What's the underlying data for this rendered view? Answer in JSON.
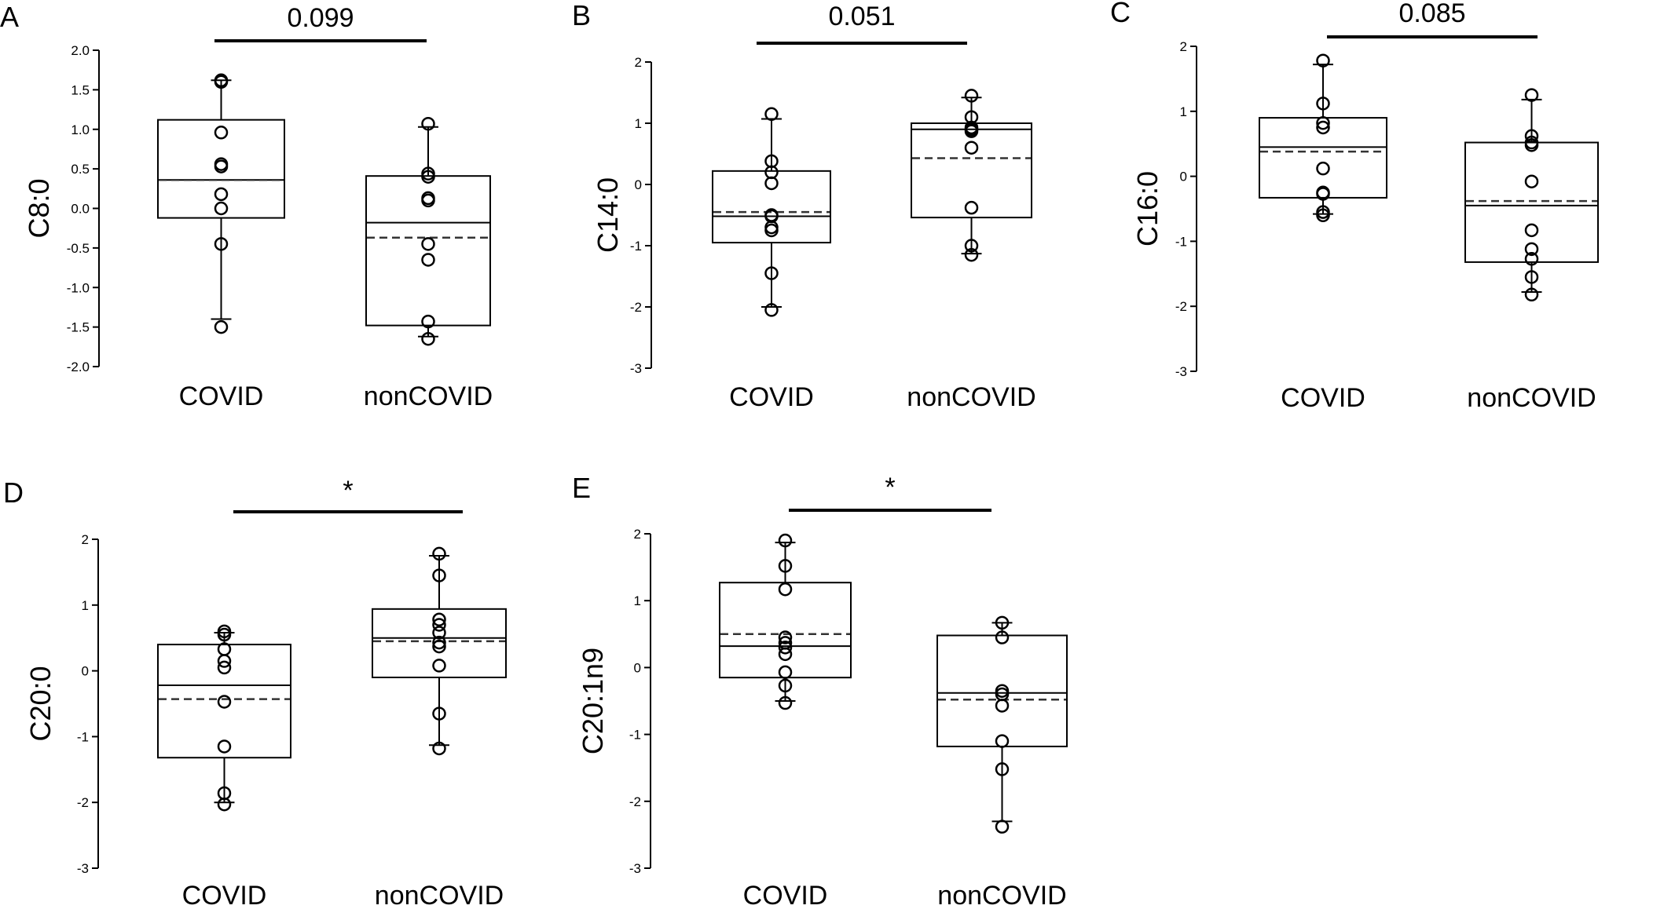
{
  "chart_data": [
    {
      "panel": "A",
      "type": "box",
      "ylabel": "C8:0",
      "categories": [
        "COVID",
        "nonCOVID"
      ],
      "ylim": [
        -2.0,
        2.0
      ],
      "yticks": [
        "2.0",
        "1.5",
        "1.0",
        "0.5",
        "0.0",
        "-0.5",
        "-1.0",
        "-1.5",
        "-2.0"
      ],
      "significance": "0.099",
      "groups": [
        {
          "name": "COVID",
          "whisker_low": -1.4,
          "q1": -0.12,
          "median": 0.36,
          "mean": 0.36,
          "q3": 1.12,
          "whisker_high": 1.62,
          "points": [
            1.62,
            1.6,
            0.96,
            0.56,
            0.53,
            0.18,
            0.0,
            -0.45,
            -1.5
          ]
        },
        {
          "name": "nonCOVID",
          "whisker_low": -1.62,
          "q1": -1.48,
          "median": -0.18,
          "mean": -0.37,
          "q3": 0.41,
          "whisker_high": 1.03,
          "points": [
            1.07,
            0.44,
            0.4,
            0.13,
            0.1,
            -0.45,
            -0.65,
            -1.43,
            -1.65
          ]
        }
      ]
    },
    {
      "panel": "B",
      "type": "box",
      "ylabel": "C14:0",
      "categories": [
        "COVID",
        "nonCOVID"
      ],
      "ylim": [
        -3,
        2
      ],
      "yticks": [
        "2",
        "1",
        "0",
        "-1",
        "-2",
        "-3"
      ],
      "significance": "0.051",
      "groups": [
        {
          "name": "COVID",
          "whisker_low": -2.0,
          "q1": -0.95,
          "median": -0.52,
          "mean": -0.45,
          "q3": 0.22,
          "whisker_high": 1.07,
          "points": [
            1.15,
            0.38,
            0.2,
            0.02,
            -0.5,
            -0.52,
            -0.7,
            -0.75,
            -1.45,
            -2.05
          ]
        },
        {
          "name": "nonCOVID",
          "whisker_low": -1.13,
          "q1": -0.54,
          "median": 0.9,
          "mean": 0.43,
          "q3": 1.0,
          "whisker_high": 1.42,
          "points": [
            1.45,
            1.1,
            0.93,
            0.9,
            0.87,
            0.6,
            -0.38,
            -1.0,
            -1.15
          ]
        }
      ]
    },
    {
      "panel": "C",
      "type": "box",
      "ylabel": "C16:0",
      "categories": [
        "COVID",
        "nonCOVID"
      ],
      "ylim": [
        -3,
        2
      ],
      "yticks": [
        "2",
        "1",
        "0",
        "-1",
        "-2",
        "-3"
      ],
      "significance": "0.085",
      "groups": [
        {
          "name": "COVID",
          "whisker_low": -0.58,
          "q1": -0.33,
          "median": 0.45,
          "mean": 0.38,
          "q3": 0.9,
          "whisker_high": 1.72,
          "points": [
            1.78,
            1.12,
            0.82,
            0.75,
            0.12,
            -0.25,
            -0.27,
            -0.55,
            -0.6
          ]
        },
        {
          "name": "nonCOVID",
          "whisker_low": -1.78,
          "q1": -1.32,
          "median": -0.45,
          "mean": -0.38,
          "q3": 0.52,
          "whisker_high": 1.18,
          "points": [
            1.25,
            0.62,
            0.52,
            0.48,
            -0.08,
            -0.83,
            -1.12,
            -1.27,
            -1.55,
            -1.82
          ]
        }
      ]
    },
    {
      "panel": "D",
      "type": "box",
      "ylabel": "C20:0",
      "categories": [
        "COVID",
        "nonCOVID"
      ],
      "ylim": [
        -3,
        2
      ],
      "yticks": [
        "2",
        "1",
        "0",
        "-1",
        "-2",
        "-3"
      ],
      "significance": "*",
      "groups": [
        {
          "name": "COVID",
          "whisker_low": -2.0,
          "q1": -1.32,
          "median": -0.22,
          "mean": -0.43,
          "q3": 0.4,
          "whisker_high": 0.58,
          "points": [
            0.6,
            0.55,
            0.33,
            0.15,
            0.05,
            -0.47,
            -1.15,
            -1.86,
            -2.03
          ]
        },
        {
          "name": "nonCOVID",
          "whisker_low": -1.13,
          "q1": -0.1,
          "median": 0.5,
          "mean": 0.45,
          "q3": 0.94,
          "whisker_high": 1.75,
          "points": [
            1.78,
            1.45,
            0.78,
            0.7,
            0.58,
            0.43,
            0.37,
            0.08,
            -0.65,
            -1.18
          ]
        }
      ]
    },
    {
      "panel": "E",
      "type": "box",
      "ylabel": "C20:1n9",
      "categories": [
        "COVID",
        "nonCOVID"
      ],
      "ylim": [
        -3,
        2
      ],
      "yticks": [
        "2",
        "1",
        "0",
        "-1",
        "-2",
        "-3"
      ],
      "significance": "*",
      "groups": [
        {
          "name": "COVID",
          "whisker_low": -0.5,
          "q1": -0.15,
          "median": 0.32,
          "mean": 0.5,
          "q3": 1.27,
          "whisker_high": 1.87,
          "points": [
            1.9,
            1.52,
            1.17,
            0.45,
            0.37,
            0.3,
            0.2,
            -0.07,
            -0.27,
            -0.53
          ]
        },
        {
          "name": "nonCOVID",
          "whisker_low": -2.3,
          "q1": -1.18,
          "median": -0.38,
          "mean": -0.48,
          "q3": 0.48,
          "whisker_high": 0.67,
          "points": [
            0.67,
            0.45,
            -0.35,
            -0.4,
            -0.57,
            -1.1,
            -1.52,
            -2.38
          ]
        }
      ]
    }
  ]
}
